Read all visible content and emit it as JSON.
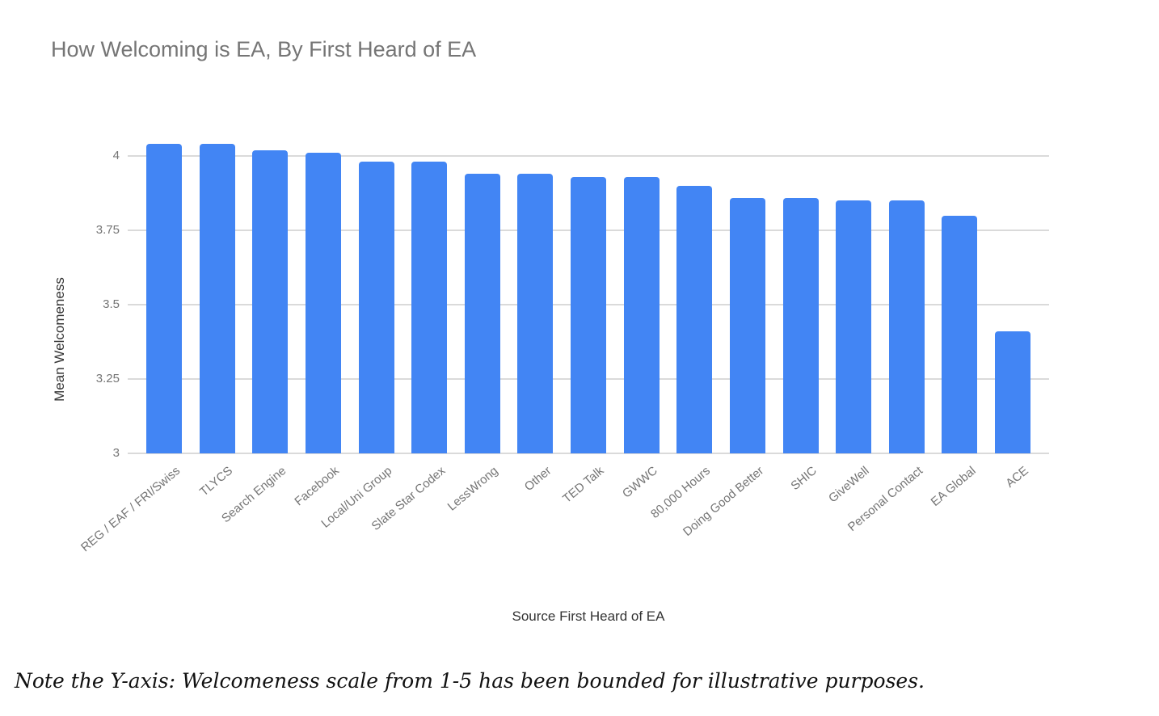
{
  "title": "How Welcoming is EA, By First Heard of EA",
  "note": "Note the Y-axis: Welcomeness scale from 1-5 has been bounded for illustrative purposes.",
  "colors": {
    "bar": "#4285f4",
    "title_text": "#757575",
    "tick_text": "#757575",
    "axis_title_text": "#333333",
    "gridline": "#dadada",
    "background": "#ffffff"
  },
  "chart_data": {
    "type": "bar",
    "title": "How Welcoming is EA, By First Heard of EA",
    "xlabel": "Source First Heard of EA",
    "ylabel": "Mean Welcomeness",
    "ylim": [
      3,
      4.0625
    ],
    "yticks": [
      3,
      3.25,
      3.5,
      3.75,
      4
    ],
    "grid": true,
    "legend": "none",
    "bar_color": "#4285f4",
    "categories": [
      "REG / EAF / FRI/Swiss",
      "TLYCS",
      "Search Engine",
      "Facebook",
      "Local/Uni Group",
      "Slate Star Codex",
      "LessWrong",
      "Other",
      "TED Talk",
      "GWWC",
      "80,000 Hours",
      "Doing Good Better",
      "SHIC",
      "GiveWell",
      "Personal Contact",
      "EA Global",
      "ACE"
    ],
    "values": [
      4.04,
      4.04,
      4.02,
      4.01,
      3.98,
      3.98,
      3.94,
      3.94,
      3.93,
      3.93,
      3.9,
      3.86,
      3.86,
      3.85,
      3.85,
      3.8,
      3.41
    ]
  }
}
